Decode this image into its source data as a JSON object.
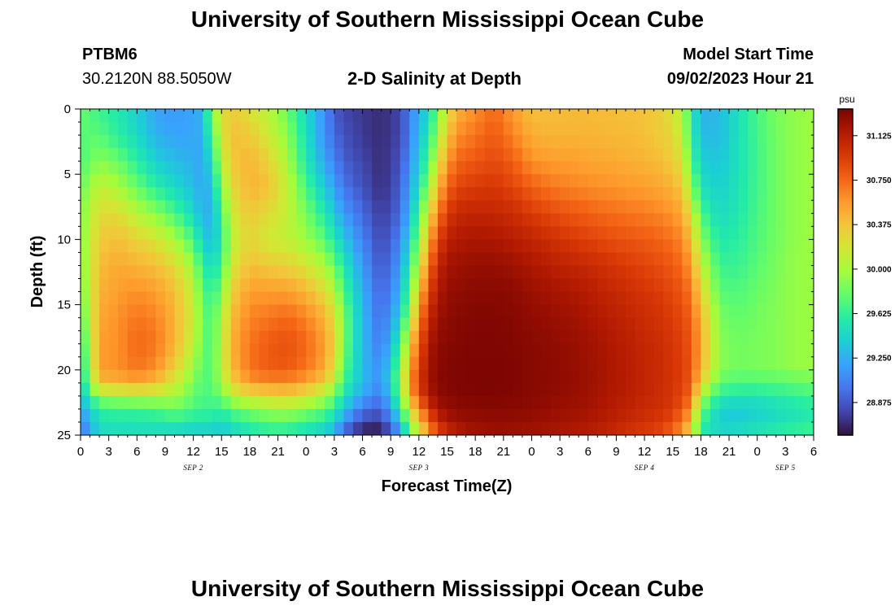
{
  "page": {
    "title_top": "University of Southern Mississippi Ocean Cube",
    "title_bottom": "University of Southern Mississippi Ocean Cube",
    "station": "PTBM6",
    "coords": "30.2120N  88.5050W",
    "chart_title": "2-D Salinity at Depth",
    "model_label": "Model Start Time",
    "model_time": "09/02/2023 Hour 21"
  },
  "colors": {
    "colormap": [
      "#30123b",
      "#4145ab",
      "#4675ed",
      "#39a2fc",
      "#1bcfd4",
      "#24eca6",
      "#61fc6c",
      "#a4fc3b",
      "#d1e834",
      "#f3c63a",
      "#fe9b2d",
      "#f36315",
      "#d93806",
      "#b11901",
      "#7a0402"
    ]
  },
  "chart_data": {
    "type": "heatmap",
    "title": "2-D Salinity at Depth",
    "xlabel": "Forecast Time(Z)",
    "ylabel": "Depth (ft)",
    "x_ticks": [
      "0",
      "3",
      "6",
      "9",
      "12",
      "15",
      "18",
      "21",
      "0",
      "3",
      "6",
      "9",
      "12",
      "15",
      "18",
      "21",
      "0",
      "3",
      "6",
      "9",
      "12",
      "15",
      "18",
      "21",
      "0",
      "3",
      "6"
    ],
    "x_range_hours": [
      0,
      78
    ],
    "date_labels": [
      {
        "text": "SEP 2",
        "hour": 12
      },
      {
        "text": "SEP 3",
        "hour": 36
      },
      {
        "text": "SEP 4",
        "hour": 60
      },
      {
        "text": "SEP 5",
        "hour": 75
      }
    ],
    "y_ticks": [
      0,
      5,
      10,
      15,
      20,
      25
    ],
    "y_range_ft": [
      0,
      25
    ],
    "colorbar_unit": "psu",
    "colorbar_range": [
      28.6,
      31.35
    ],
    "colorbar_ticks": [
      "31.125",
      "30.750",
      "30.375",
      "30.000",
      "29.625",
      "29.250",
      "28.875"
    ],
    "time_hours": [
      0,
      2,
      4,
      6,
      8,
      10,
      12,
      13,
      14,
      15,
      16,
      18,
      20,
      22,
      24,
      26,
      27,
      28,
      30,
      32,
      34,
      35,
      36,
      37,
      38,
      39,
      40,
      42,
      44,
      46,
      48,
      50,
      52,
      54,
      56,
      58,
      60,
      62,
      63,
      64,
      65,
      66,
      68,
      70,
      72,
      74,
      76,
      78
    ],
    "depths_ft": [
      0,
      2,
      4,
      6,
      8,
      10,
      12,
      14,
      16,
      18,
      20,
      21,
      22,
      23,
      24,
      25
    ],
    "salinity_psu": [
      [
        29.8,
        29.75,
        29.7,
        29.8,
        29.85,
        29.85,
        29.85,
        29.8,
        29.7,
        29.55,
        29.45,
        29.4,
        29.3,
        29.2,
        29.05,
        28.95
      ],
      [
        29.65,
        29.75,
        29.9,
        30.1,
        30.25,
        30.35,
        30.4,
        30.45,
        30.5,
        30.55,
        30.55,
        30.4,
        29.95,
        29.6,
        29.5,
        29.45
      ],
      [
        29.55,
        29.6,
        29.8,
        30.0,
        30.25,
        30.4,
        30.5,
        30.55,
        30.6,
        30.6,
        30.6,
        30.45,
        30.0,
        29.65,
        29.55,
        29.45
      ],
      [
        29.4,
        29.45,
        29.6,
        29.8,
        30.05,
        30.3,
        30.45,
        30.6,
        30.7,
        30.75,
        30.7,
        30.5,
        30.05,
        29.65,
        29.55,
        29.45
      ],
      [
        29.2,
        29.25,
        29.4,
        29.6,
        29.9,
        30.2,
        30.4,
        30.55,
        30.65,
        30.7,
        30.6,
        30.4,
        30.05,
        29.7,
        29.55,
        29.45
      ],
      [
        29.15,
        29.2,
        29.3,
        29.45,
        29.7,
        30.0,
        30.25,
        30.4,
        30.45,
        30.45,
        30.3,
        30.15,
        30.0,
        29.8,
        29.6,
        29.4
      ],
      [
        29.2,
        29.2,
        29.25,
        29.3,
        29.45,
        29.7,
        29.95,
        30.1,
        30.15,
        30.1,
        29.95,
        29.85,
        29.8,
        29.7,
        29.55,
        29.35
      ],
      [
        29.3,
        29.25,
        29.2,
        29.2,
        29.25,
        29.4,
        29.6,
        29.75,
        29.8,
        29.8,
        29.75,
        29.7,
        29.7,
        29.65,
        29.55,
        29.35
      ],
      [
        29.9,
        29.7,
        29.5,
        29.35,
        29.25,
        29.3,
        29.45,
        29.6,
        29.7,
        29.7,
        29.75,
        29.75,
        29.75,
        29.65,
        29.55,
        29.35
      ],
      [
        30.2,
        30.15,
        30.05,
        29.85,
        29.65,
        29.55,
        29.65,
        29.85,
        30.0,
        30.05,
        30.05,
        29.95,
        29.8,
        29.6,
        29.45,
        29.3
      ],
      [
        30.35,
        30.4,
        30.35,
        30.25,
        30.15,
        30.05,
        30.15,
        30.3,
        30.4,
        30.45,
        30.4,
        30.3,
        30.05,
        29.75,
        29.55,
        29.4
      ],
      [
        30.2,
        30.35,
        30.45,
        30.45,
        30.35,
        30.3,
        30.4,
        30.55,
        30.65,
        30.7,
        30.7,
        30.55,
        30.2,
        29.85,
        29.65,
        29.5
      ],
      [
        30.05,
        30.15,
        30.3,
        30.4,
        30.25,
        30.15,
        30.35,
        30.55,
        30.7,
        30.8,
        30.8,
        30.6,
        30.25,
        29.95,
        29.75,
        29.55
      ],
      [
        29.8,
        29.9,
        30.0,
        30.1,
        30.1,
        30.1,
        30.3,
        30.55,
        30.75,
        30.85,
        30.8,
        30.6,
        30.3,
        30.0,
        29.75,
        29.55
      ],
      [
        29.45,
        29.5,
        29.55,
        29.7,
        29.85,
        29.95,
        30.2,
        30.45,
        30.65,
        30.75,
        30.7,
        30.5,
        30.2,
        29.9,
        29.65,
        29.45
      ],
      [
        29.1,
        29.1,
        29.2,
        29.35,
        29.55,
        29.75,
        30.0,
        30.25,
        30.45,
        30.55,
        30.5,
        30.3,
        30.0,
        29.75,
        29.55,
        29.35
      ],
      [
        28.9,
        28.95,
        29.05,
        29.2,
        29.35,
        29.55,
        29.8,
        30.05,
        30.25,
        30.3,
        30.2,
        30.05,
        29.8,
        29.6,
        29.4,
        29.2
      ],
      [
        28.8,
        28.85,
        28.9,
        29.0,
        29.15,
        29.35,
        29.55,
        29.7,
        29.85,
        29.85,
        29.75,
        29.65,
        29.5,
        29.35,
        29.1,
        28.9
      ],
      [
        28.75,
        28.75,
        28.8,
        28.85,
        28.95,
        29.05,
        29.15,
        29.25,
        29.3,
        29.3,
        29.3,
        29.3,
        29.2,
        29.0,
        28.8,
        28.6
      ],
      [
        28.7,
        28.7,
        28.7,
        28.7,
        28.75,
        28.8,
        28.85,
        28.9,
        28.95,
        29.0,
        29.1,
        29.1,
        29.0,
        28.9,
        28.75,
        28.6
      ],
      [
        28.8,
        28.8,
        28.85,
        28.9,
        28.95,
        29.05,
        29.15,
        29.25,
        29.4,
        29.6,
        29.8,
        29.85,
        29.75,
        29.55,
        29.3,
        29.1
      ],
      [
        29.05,
        29.05,
        29.1,
        29.2,
        29.3,
        29.45,
        29.6,
        29.8,
        30.0,
        30.3,
        30.5,
        30.55,
        30.45,
        30.2,
        29.95,
        29.7
      ],
      [
        29.25,
        29.3,
        29.4,
        29.5,
        29.7,
        29.9,
        30.1,
        30.35,
        30.6,
        30.8,
        30.9,
        30.95,
        30.85,
        30.6,
        30.35,
        30.1
      ],
      [
        29.45,
        29.55,
        29.7,
        29.95,
        30.2,
        30.45,
        30.7,
        30.9,
        31.05,
        31.15,
        31.2,
        31.2,
        31.15,
        30.95,
        30.75,
        30.5
      ],
      [
        29.8,
        29.95,
        30.15,
        30.4,
        30.65,
        30.9,
        31.05,
        31.15,
        31.22,
        31.28,
        31.3,
        31.3,
        31.27,
        31.2,
        31.05,
        30.85
      ],
      [
        30.2,
        30.35,
        30.55,
        30.75,
        30.95,
        31.1,
        31.2,
        31.25,
        31.28,
        31.3,
        31.32,
        31.32,
        31.3,
        31.25,
        31.15,
        31.0
      ],
      [
        30.45,
        30.6,
        30.75,
        30.9,
        31.05,
        31.15,
        31.22,
        31.27,
        31.3,
        31.32,
        31.33,
        31.33,
        31.32,
        31.28,
        31.22,
        31.12
      ],
      [
        30.6,
        30.7,
        30.82,
        30.95,
        31.08,
        31.18,
        31.25,
        31.3,
        31.32,
        31.33,
        31.34,
        31.34,
        31.33,
        31.3,
        31.25,
        31.2
      ],
      [
        30.75,
        30.8,
        30.88,
        30.97,
        31.07,
        31.17,
        31.25,
        31.3,
        31.32,
        31.33,
        31.34,
        31.34,
        31.33,
        31.3,
        31.27,
        31.22
      ],
      [
        30.55,
        30.65,
        30.78,
        30.9,
        31.03,
        31.13,
        31.22,
        31.28,
        31.31,
        31.32,
        31.33,
        31.33,
        31.32,
        31.3,
        31.26,
        31.22
      ],
      [
        30.4,
        30.48,
        30.6,
        30.78,
        30.95,
        31.08,
        31.17,
        31.23,
        31.27,
        31.3,
        31.3,
        31.3,
        31.3,
        31.28,
        31.25,
        31.2
      ],
      [
        30.4,
        30.45,
        30.55,
        30.7,
        30.88,
        31.02,
        31.12,
        31.2,
        31.25,
        31.28,
        31.29,
        31.29,
        31.28,
        31.25,
        31.22,
        31.18
      ],
      [
        30.42,
        30.45,
        30.55,
        30.65,
        30.82,
        30.97,
        31.08,
        31.17,
        31.22,
        31.25,
        31.26,
        31.26,
        31.25,
        31.23,
        31.2,
        31.15
      ],
      [
        30.42,
        30.45,
        30.52,
        30.62,
        30.78,
        30.92,
        31.05,
        31.13,
        31.18,
        31.22,
        31.23,
        31.23,
        31.22,
        31.2,
        31.17,
        31.12
      ],
      [
        30.4,
        30.43,
        30.5,
        30.6,
        30.73,
        30.87,
        31.0,
        31.08,
        31.13,
        31.17,
        31.18,
        31.18,
        31.17,
        31.15,
        31.12,
        31.08
      ],
      [
        30.4,
        30.42,
        30.48,
        30.57,
        30.7,
        30.83,
        30.95,
        31.03,
        31.08,
        31.12,
        31.13,
        31.13,
        31.12,
        31.1,
        31.05,
        31.0
      ],
      [
        30.38,
        30.4,
        30.45,
        30.55,
        30.67,
        30.8,
        30.9,
        30.98,
        31.03,
        31.07,
        31.08,
        31.08,
        31.07,
        31.05,
        31.0,
        30.95
      ],
      [
        30.3,
        30.33,
        30.4,
        30.5,
        30.63,
        30.75,
        30.85,
        30.93,
        30.98,
        31.02,
        31.03,
        31.03,
        31.02,
        31.0,
        30.95,
        30.85
      ],
      [
        30.2,
        30.25,
        30.33,
        30.45,
        30.58,
        30.7,
        30.8,
        30.88,
        30.93,
        30.97,
        30.98,
        30.98,
        30.97,
        30.93,
        30.85,
        30.72
      ],
      [
        30.05,
        30.1,
        30.2,
        30.35,
        30.5,
        30.63,
        30.73,
        30.82,
        30.88,
        30.92,
        30.93,
        30.93,
        30.9,
        30.82,
        30.7,
        30.55
      ],
      [
        29.6,
        29.65,
        29.75,
        29.95,
        30.2,
        30.4,
        30.55,
        30.68,
        30.77,
        30.82,
        30.83,
        30.8,
        30.72,
        30.58,
        30.4,
        30.2
      ],
      [
        29.25,
        29.3,
        29.4,
        29.5,
        29.7,
        29.9,
        30.1,
        30.3,
        30.45,
        30.5,
        30.45,
        30.3,
        30.0,
        29.8,
        29.65,
        29.55
      ],
      [
        29.3,
        29.3,
        29.35,
        29.4,
        29.45,
        29.55,
        29.65,
        29.75,
        29.85,
        29.9,
        29.9,
        29.75,
        29.6,
        29.4,
        29.4,
        29.45
      ],
      [
        29.5,
        29.5,
        29.5,
        29.52,
        29.55,
        29.6,
        29.65,
        29.72,
        29.78,
        29.82,
        29.82,
        29.7,
        29.55,
        29.35,
        29.4,
        29.5
      ],
      [
        29.7,
        29.68,
        29.68,
        29.68,
        29.7,
        29.72,
        29.75,
        29.8,
        29.83,
        29.85,
        29.85,
        29.7,
        29.55,
        29.4,
        29.45,
        29.55
      ],
      [
        29.85,
        29.83,
        29.82,
        29.82,
        29.82,
        29.83,
        29.85,
        29.87,
        29.88,
        29.88,
        29.88,
        29.72,
        29.6,
        29.45,
        29.5,
        29.6
      ],
      [
        29.92,
        29.92,
        29.92,
        29.92,
        29.92,
        29.92,
        29.93,
        29.93,
        29.93,
        29.93,
        29.93,
        29.75,
        29.65,
        29.5,
        29.55,
        29.65
      ],
      [
        29.95,
        29.95,
        29.95,
        29.95,
        29.95,
        29.95,
        29.95,
        29.95,
        29.95,
        29.95,
        29.95,
        29.8,
        29.7,
        29.55,
        29.6,
        29.7
      ]
    ]
  }
}
